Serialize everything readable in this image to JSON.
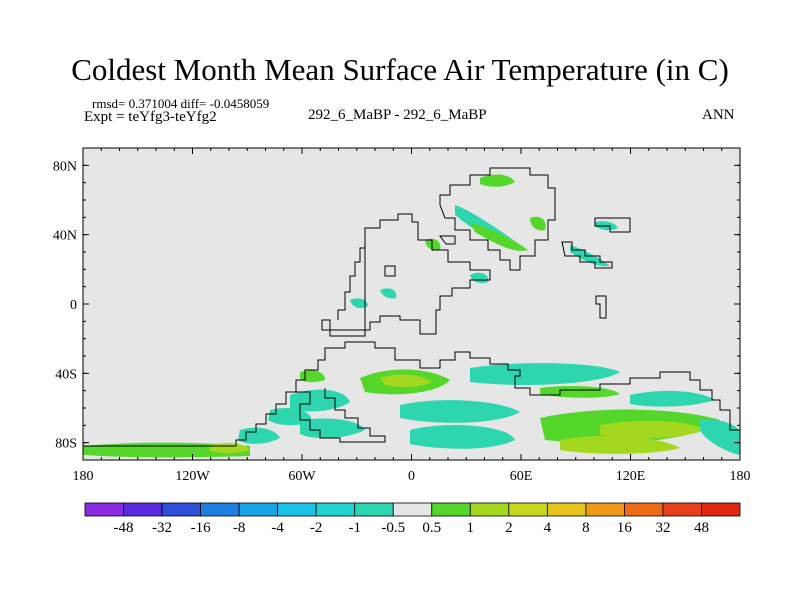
{
  "figure": {
    "title": "Coldest Month Mean Surface Air Temperature (in C)",
    "stats_line": "rmsd= 0.371004 diff= -0.0458059",
    "experiment": "Expt = teYfg3-teYfg2",
    "center_label": "292_6_MaBP - 292_6_MaBP",
    "season": "ANN"
  },
  "map_axes": {
    "lon_ticks": [
      "180",
      "120W",
      "60W",
      "0",
      "60E",
      "120E",
      "180"
    ],
    "lat_ticks": [
      "80N",
      "40N",
      "0",
      "40S",
      "80S"
    ],
    "lon_range": [
      -180,
      180
    ],
    "lat_range": [
      -90,
      90
    ]
  },
  "colorbar": {
    "levels": [
      "-48",
      "-32",
      "-16",
      "-8",
      "-4",
      "-2",
      "-1",
      "-0.5",
      "0.5",
      "1",
      "2",
      "4",
      "8",
      "16",
      "32",
      "48"
    ],
    "colors": [
      "#8a2be2",
      "#5a2ae0",
      "#2f4fd8",
      "#1e7fe0",
      "#1aa6e6",
      "#19c3e8",
      "#20d3d0",
      "#2ed6b0",
      "#e6e6e6",
      "#55d62a",
      "#a4d81e",
      "#c6d81c",
      "#e6c41a",
      "#ef9a18",
      "#ef6a14",
      "#e8401a",
      "#e02810"
    ]
  },
  "colors": {
    "background_field": "#e6e6e6",
    "coast": "#000000"
  }
}
